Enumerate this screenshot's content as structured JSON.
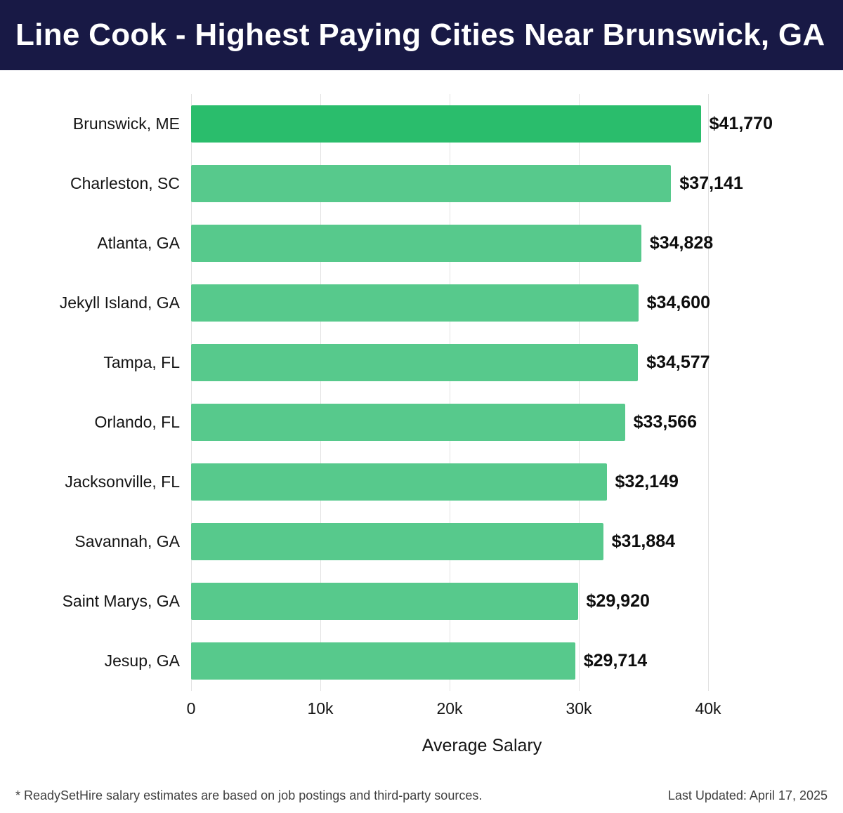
{
  "title": "Line Cook - Highest Paying Cities Near Brunswick, GA",
  "footer": {
    "note": "* ReadySetHire salary estimates are based on job postings and third-party sources.",
    "last_updated": "Last Updated: April 17, 2025"
  },
  "chart_data": {
    "type": "bar",
    "orientation": "horizontal",
    "title": "Line Cook - Highest Paying Cities Near Brunswick, GA",
    "categories": [
      "Brunswick, ME",
      "Charleston, SC",
      "Atlanta, GA",
      "Jekyll Island, GA",
      "Tampa, FL",
      "Orlando, FL",
      "Jacksonville, FL",
      "Savannah, GA",
      "Saint Marys, GA",
      "Jesup, GA"
    ],
    "values": [
      41770,
      37141,
      34828,
      34600,
      34577,
      33566,
      32149,
      31884,
      29920,
      29714
    ],
    "value_labels": [
      "$41,770",
      "$37,141",
      "$34,828",
      "$34,600",
      "$34,577",
      "$33,566",
      "$32,149",
      "$31,884",
      "$29,920",
      "$29,714"
    ],
    "xlabel": "Average Salary",
    "ylabel": "",
    "xlim": [
      0,
      45000
    ],
    "xticks": [
      {
        "value": 0,
        "label": "0"
      },
      {
        "value": 10000,
        "label": "10k"
      },
      {
        "value": 20000,
        "label": "20k"
      },
      {
        "value": 30000,
        "label": "30k"
      },
      {
        "value": 40000,
        "label": "40k"
      }
    ],
    "grid": true,
    "legend": false,
    "colors": {
      "bar_default": "#57c98c",
      "bar_highlight": "#2abd6c",
      "highlight_index": 0,
      "header_background": "#181945",
      "gridline": "#e2e2e2"
    }
  }
}
